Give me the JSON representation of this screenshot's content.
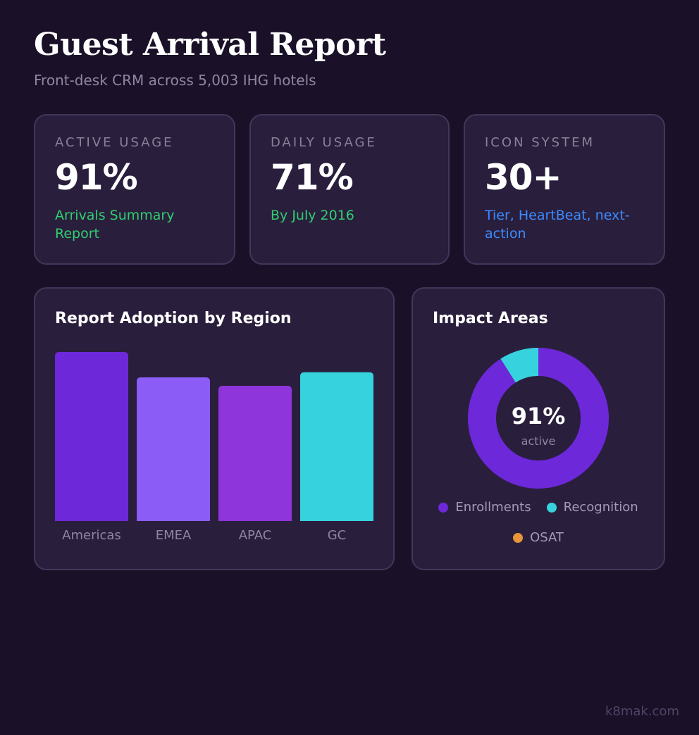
{
  "header": {
    "title": "Guest Arrival Report",
    "subtitle": "Front-desk CRM across 5,003 IHG hotels"
  },
  "stats": [
    {
      "label": "ACTIVE USAGE",
      "value": "91%",
      "note": "Arrivals Summary Report",
      "note_color": "#2fd06f"
    },
    {
      "label": "DAILY USAGE",
      "value": "71%",
      "note": "By July 2016",
      "note_color": "#2fd06f"
    },
    {
      "label": "ICON SYSTEM",
      "value": "30+",
      "note": "Tier, HeartBeat, next-action",
      "note_color": "#3b8cff"
    }
  ],
  "chart_data": [
    {
      "type": "bar",
      "title": "Report Adoption by Region",
      "categories": [
        "Americas",
        "EMEA",
        "APAC",
        "GC"
      ],
      "values": [
        100,
        85,
        80,
        88
      ],
      "colors": [
        "#6d28d9",
        "#8b5cf6",
        "#8f35dc",
        "#36d3df"
      ],
      "ylim": [
        0,
        100
      ],
      "grid": false
    },
    {
      "type": "pie",
      "title": "Impact Areas",
      "donut": true,
      "center_value": "91%",
      "center_label": "active",
      "labels": [
        "Enrollments",
        "Recognition",
        "OSAT"
      ],
      "values": [
        91,
        9,
        0
      ],
      "colors": [
        "#6d28d9",
        "#36d3df",
        "#e8953a"
      ],
      "legend": "bottom"
    }
  ],
  "footer": {
    "watermark": "k8mak.com"
  }
}
